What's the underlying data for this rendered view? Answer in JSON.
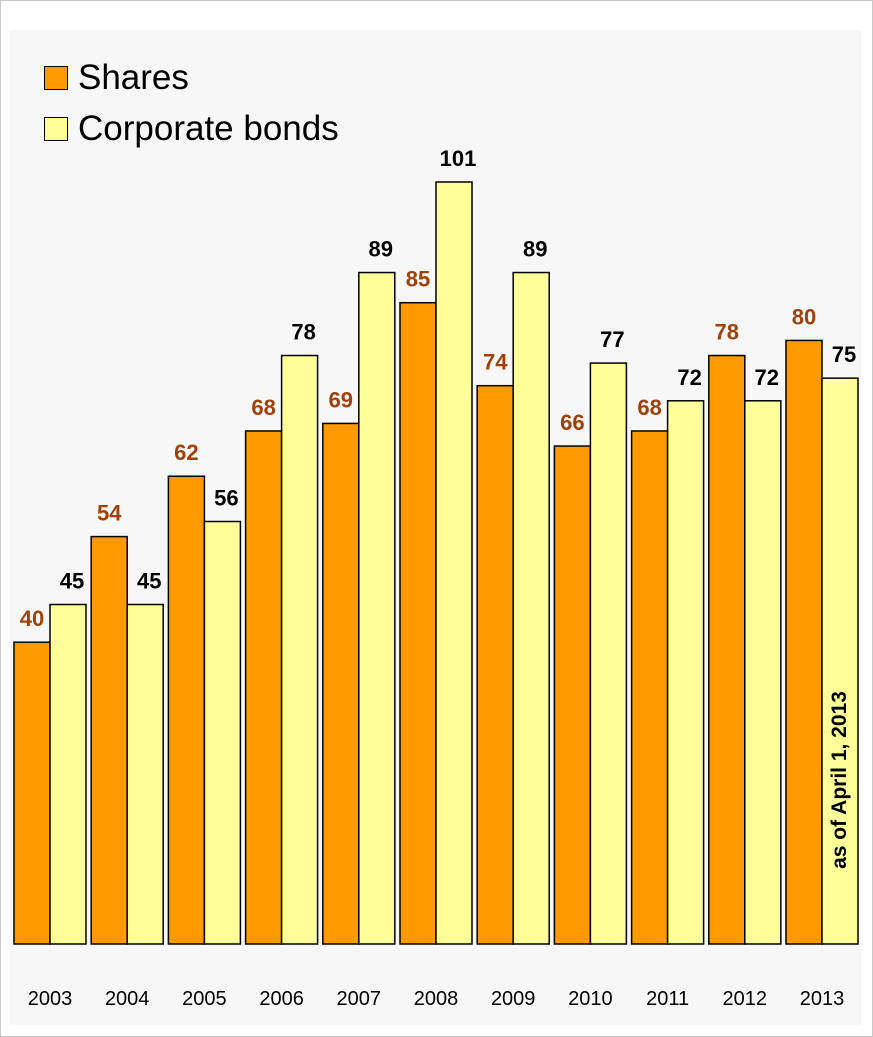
{
  "chart_data": {
    "type": "bar",
    "categories": [
      "2003",
      "2004",
      "2005",
      "2006",
      "2007",
      "2008",
      "2009",
      "2010",
      "2011",
      "2012",
      "2013"
    ],
    "series": [
      {
        "name": "Shares",
        "color": "#ff9900",
        "label_color": "#a0400a",
        "values": [
          40,
          54,
          62,
          68,
          69,
          85,
          74,
          66,
          68,
          78,
          80
        ]
      },
      {
        "name": "Corporate bonds",
        "color": "#ffff99",
        "label_color": "#000000",
        "values": [
          45,
          45,
          56,
          78,
          89,
          101,
          89,
          77,
          72,
          72,
          75
        ]
      }
    ],
    "ylim": [
      0,
      110
    ],
    "grid": false,
    "legend_position": "top-left",
    "annotation": "as of April 1, 2013"
  }
}
